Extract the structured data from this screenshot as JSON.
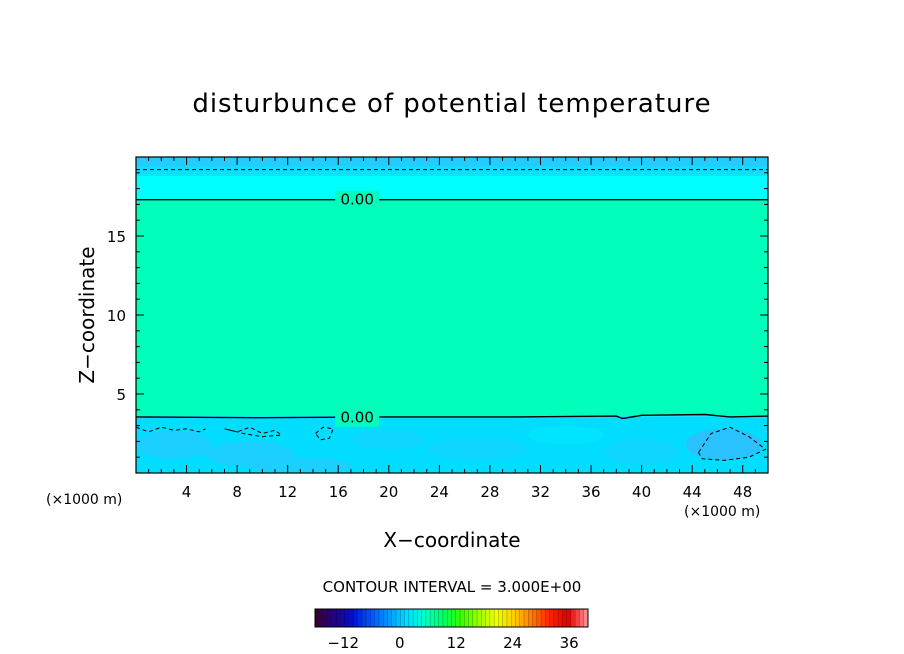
{
  "chart_data": {
    "type": "heatmap",
    "title": "disturbunce of potential temperature",
    "xlabel": "X−coordinate",
    "ylabel": "Z−coordinate",
    "x_unit": "(×1000 m)",
    "y_unit": "(×1000 m)",
    "xlim": [
      0,
      50
    ],
    "ylim": [
      0,
      20
    ],
    "x_ticks": [
      4,
      8,
      12,
      16,
      20,
      24,
      28,
      32,
      36,
      40,
      44,
      48
    ],
    "y_ticks": [
      5,
      10,
      15
    ],
    "x_tick_labels": [
      "4",
      "8",
      "12",
      "16",
      "20",
      "24",
      "28",
      "32",
      "36",
      "40",
      "44",
      "48"
    ],
    "y_tick_labels": [
      "5",
      "10",
      "15"
    ],
    "contour_interval_label": "CONTOUR INTERVAL = 3.000E+00",
    "contour_labels": [
      {
        "text": "0.00",
        "x": 17.5,
        "z": 17.3
      },
      {
        "text": "0.00",
        "x": 17.5,
        "z": 3.5
      }
    ],
    "zero_contours": [
      {
        "name": "upper",
        "points": [
          [
            0,
            17.3
          ],
          [
            50,
            17.3
          ]
        ]
      },
      {
        "name": "lower",
        "points": [
          [
            0,
            3.55
          ],
          [
            10,
            3.5
          ],
          [
            20,
            3.55
          ],
          [
            30,
            3.55
          ],
          [
            38,
            3.6
          ],
          [
            38.5,
            3.45
          ],
          [
            40,
            3.65
          ],
          [
            45,
            3.7
          ],
          [
            47,
            3.55
          ],
          [
            50,
            3.6
          ]
        ]
      }
    ],
    "negative_contours": [
      {
        "points": [
          [
            0,
            19.2
          ],
          [
            50,
            19.2
          ]
        ]
      },
      {
        "points": [
          [
            44.5,
            1.3
          ],
          [
            45.5,
            2.5
          ],
          [
            47,
            2.9
          ],
          [
            48.5,
            2.3
          ],
          [
            49.8,
            1.5
          ],
          [
            48.5,
            1.0
          ],
          [
            46.5,
            0.8
          ],
          [
            44.8,
            0.9
          ],
          [
            44.5,
            1.3
          ]
        ]
      },
      {
        "points": [
          [
            0,
            2.9
          ],
          [
            1,
            2.6
          ],
          [
            2,
            2.9
          ],
          [
            3,
            2.7
          ],
          [
            4,
            2.8
          ],
          [
            5,
            2.6
          ],
          [
            5.5,
            2.8
          ]
        ]
      },
      {
        "points": [
          [
            7,
            2.8
          ],
          [
            8,
            2.6
          ],
          [
            9,
            2.9
          ],
          [
            10,
            2.5
          ],
          [
            11,
            2.7
          ],
          [
            11.5,
            2.4
          ],
          [
            10,
            2.3
          ],
          [
            8.5,
            2.5
          ],
          [
            7,
            2.8
          ]
        ]
      },
      {
        "points": [
          [
            14.2,
            2.5
          ],
          [
            14.8,
            2.9
          ],
          [
            15.6,
            2.8
          ],
          [
            15.3,
            2.2
          ],
          [
            14.6,
            2.1
          ],
          [
            14.2,
            2.5
          ]
        ]
      }
    ],
    "field_bands": [
      {
        "z0": 19.4,
        "z1": 20,
        "color": "#22ccff"
      },
      {
        "z0": 18.8,
        "z1": 19.4,
        "color": "#11ddff"
      },
      {
        "z0": 17.3,
        "z1": 18.8,
        "color": "#00ffff"
      },
      {
        "z0": 3.6,
        "z1": 17.3,
        "color": "#00ffbb"
      },
      {
        "z0": 0,
        "z1": 3.6,
        "color": "#00ddff"
      }
    ],
    "colorbar": {
      "range": [
        -18,
        40
      ],
      "tick_values": [
        -12,
        0,
        12,
        24,
        36
      ],
      "tick_labels": [
        "−12",
        "0",
        "12",
        "24",
        "36"
      ],
      "stops": [
        "#330033",
        "#220088",
        "#0011cc",
        "#0055ff",
        "#0099ff",
        "#00ddff",
        "#00ffcc",
        "#00ff66",
        "#33ff00",
        "#99ff00",
        "#eeff00",
        "#ffcc00",
        "#ff7700",
        "#ff2200",
        "#dd0000",
        "#ff8888"
      ]
    }
  }
}
